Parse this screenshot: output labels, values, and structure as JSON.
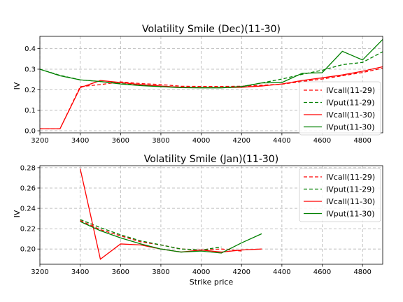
{
  "chart_data": [
    {
      "type": "line",
      "title": "Volatility Smile (Dec)(11-30)",
      "xlabel": "",
      "ylabel": "IV",
      "xlim": [
        3200,
        4900
      ],
      "ylim": [
        -0.01,
        0.46
      ],
      "xticks": [
        3200,
        3400,
        3600,
        3800,
        4000,
        4200,
        4400,
        4600,
        4800
      ],
      "yticks": [
        0.0,
        0.1,
        0.2,
        0.3,
        0.4
      ],
      "xtick_labels": [
        "3200",
        "3400",
        "3600",
        "3800",
        "4000",
        "4200",
        "4400",
        "4600",
        "4800"
      ],
      "ytick_labels": [
        "0.0",
        "0.1",
        "0.2",
        "0.3",
        "0.4"
      ],
      "grid": true,
      "legend_position": "lower-right",
      "series": [
        {
          "name": "IVcall(11-29)",
          "color": "#ff0000",
          "dash": "dashed",
          "x": [
            3200,
            3300,
            3400,
            3500,
            3600,
            3700,
            3800,
            3900,
            4000,
            4100,
            4200,
            4300,
            4400,
            4500,
            4600,
            4700,
            4800,
            4900
          ],
          "y": [
            0.01,
            0.01,
            0.215,
            0.225,
            0.238,
            0.23,
            0.225,
            0.217,
            0.216,
            0.216,
            0.217,
            0.222,
            0.227,
            0.24,
            0.252,
            0.268,
            0.284,
            0.305
          ]
        },
        {
          "name": "IVput(11-29)",
          "color": "#008000",
          "dash": "dashed",
          "x": [
            3200,
            3300,
            3400,
            3500,
            3600,
            3700,
            3800,
            3900,
            4000,
            4100,
            4200,
            4300,
            4400,
            4500,
            4600,
            4700,
            4800,
            4900
          ],
          "y": [
            0.3,
            0.27,
            0.248,
            0.24,
            0.23,
            0.222,
            0.216,
            0.212,
            0.211,
            0.211,
            0.215,
            0.233,
            0.252,
            0.275,
            0.295,
            0.322,
            0.333,
            0.385
          ]
        },
        {
          "name": "IVcall(11-30)",
          "color": "#ff0000",
          "dash": "solid",
          "x": [
            3200,
            3300,
            3400,
            3500,
            3600,
            3700,
            3800,
            3900,
            4000,
            4100,
            4200,
            4300,
            4400,
            4500,
            4600,
            4700,
            4800,
            4900
          ],
          "y": [
            0.01,
            0.01,
            0.21,
            0.245,
            0.235,
            0.225,
            0.218,
            0.212,
            0.21,
            0.21,
            0.212,
            0.218,
            0.228,
            0.245,
            0.258,
            0.272,
            0.29,
            0.312
          ]
        },
        {
          "name": "IVput(11-30)",
          "color": "#008000",
          "dash": "solid",
          "x": [
            3200,
            3300,
            3400,
            3500,
            3600,
            3700,
            3800,
            3900,
            4000,
            4100,
            4200,
            4300,
            4400,
            4500,
            4600,
            4700,
            4800,
            4900
          ],
          "y": [
            0.3,
            0.268,
            0.248,
            0.24,
            0.228,
            0.22,
            0.215,
            0.21,
            0.209,
            0.209,
            0.215,
            0.233,
            0.235,
            0.28,
            0.283,
            0.387,
            0.345,
            0.445
          ]
        }
      ]
    },
    {
      "type": "line",
      "title": "Volatility Smile (Jan)(11-30)",
      "xlabel": "Strike price",
      "ylabel": "IV",
      "xlim": [
        3200,
        4900
      ],
      "ylim": [
        0.185,
        0.282
      ],
      "xticks": [
        3200,
        3400,
        3600,
        3800,
        4000,
        4200,
        4400,
        4600,
        4800
      ],
      "yticks": [
        0.2,
        0.22,
        0.24,
        0.26,
        0.28
      ],
      "xtick_labels": [
        "3200",
        "3400",
        "3600",
        "3800",
        "4000",
        "4200",
        "4400",
        "4600",
        "4800"
      ],
      "ytick_labels": [
        "0.20",
        "0.22",
        "0.24",
        "0.26",
        "0.28"
      ],
      "grid": true,
      "legend_position": "upper-right",
      "series": [
        {
          "name": "IVcall(11-29)",
          "color": "#ff0000",
          "dash": "dashed",
          "x": [
            3400,
            3500,
            3600,
            3700,
            3800,
            3900,
            4000,
            4100,
            4200
          ],
          "y": [
            0.228,
            0.219,
            0.213,
            0.207,
            0.204,
            0.2,
            0.199,
            0.2,
            0.198
          ]
        },
        {
          "name": "IVput(11-29)",
          "color": "#008000",
          "dash": "dashed",
          "x": [
            3400,
            3500,
            3600,
            3700,
            3800,
            3900,
            4000,
            4100
          ],
          "y": [
            0.229,
            0.221,
            0.214,
            0.208,
            0.204,
            0.2,
            0.199,
            0.202
          ]
        },
        {
          "name": "IVcall(11-30)",
          "color": "#ff0000",
          "dash": "solid",
          "x": [
            3400,
            3500,
            3600,
            3700,
            3800,
            3900,
            4000,
            4100,
            4200,
            4300
          ],
          "y": [
            0.279,
            0.19,
            0.205,
            0.204,
            0.2,
            0.197,
            0.199,
            0.197,
            0.199,
            0.2
          ]
        },
        {
          "name": "IVput(11-30)",
          "color": "#008000",
          "dash": "solid",
          "x": [
            3400,
            3500,
            3600,
            3700,
            3800,
            3900,
            4000,
            4100,
            4200,
            4300
          ],
          "y": [
            0.227,
            0.218,
            0.211,
            0.205,
            0.2,
            0.197,
            0.198,
            0.196,
            0.206,
            0.215
          ]
        }
      ]
    }
  ]
}
